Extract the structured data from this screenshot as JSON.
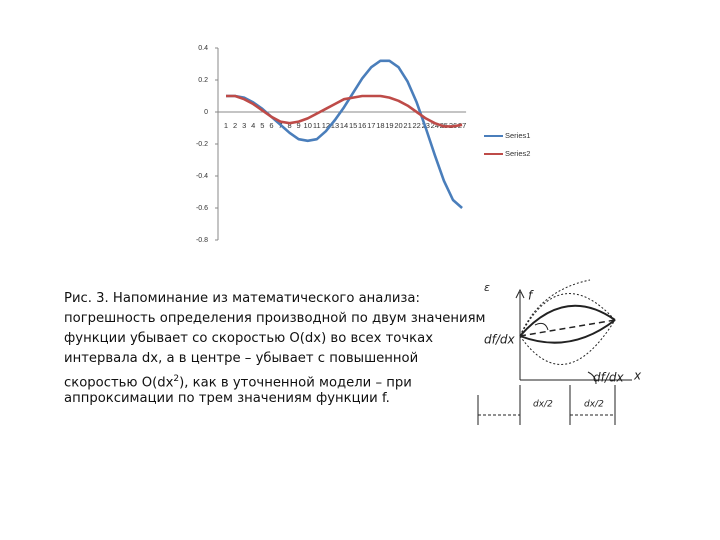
{
  "chart_data": {
    "type": "line",
    "categories": [
      "1",
      "2",
      "3",
      "4",
      "5",
      "6",
      "7",
      "8",
      "9",
      "10",
      "11",
      "12",
      "13",
      "14",
      "15",
      "16",
      "17",
      "18",
      "19",
      "20",
      "21",
      "22",
      "23",
      "24",
      "25",
      "26",
      "27"
    ],
    "series": [
      {
        "name": "Series1",
        "color": "#4a7ebb",
        "values": [
          0.1,
          0.1,
          0.09,
          0.06,
          0.02,
          -0.03,
          -0.08,
          -0.13,
          -0.17,
          -0.18,
          -0.17,
          -0.12,
          -0.05,
          0.03,
          0.12,
          0.21,
          0.28,
          0.32,
          0.32,
          0.28,
          0.19,
          0.06,
          -0.1,
          -0.27,
          -0.43,
          -0.55,
          -0.6
        ]
      },
      {
        "name": "Series2",
        "color": "#be4b48",
        "values": [
          0.1,
          0.1,
          0.08,
          0.05,
          0.01,
          -0.03,
          -0.06,
          -0.07,
          -0.06,
          -0.04,
          -0.01,
          0.02,
          0.05,
          0.08,
          0.09,
          0.1,
          0.1,
          0.1,
          0.09,
          0.07,
          0.04,
          0.0,
          -0.04,
          -0.07,
          -0.09,
          -0.09,
          -0.08
        ]
      }
    ],
    "ylim": [
      -0.8,
      0.4
    ],
    "yticks": [
      -0.8,
      -0.6,
      -0.4,
      -0.2,
      0,
      0.2,
      0.4
    ],
    "legend": "right"
  },
  "caption": {
    "lines": [
      "Рис. 3. Напоминание из математического анализа:",
      "погрешность определения производной по двум значениям",
      "функции убывает со скоростью O(dx) во всех точках",
      "интервала dx, а в центре – убывает с повышенной",
      [
        "скоростью O(dx",
        "2",
        "), как в уточненной модели – при"
      ],
      "аппроксимации по трем значениям функции f."
    ]
  },
  "diagram": {
    "epsilon": "ε",
    "f": "f",
    "derivative_left": "df/dx",
    "derivative_right": "df/dx",
    "x": "x",
    "half_left": "dx/2",
    "half_right": "dx/2"
  }
}
